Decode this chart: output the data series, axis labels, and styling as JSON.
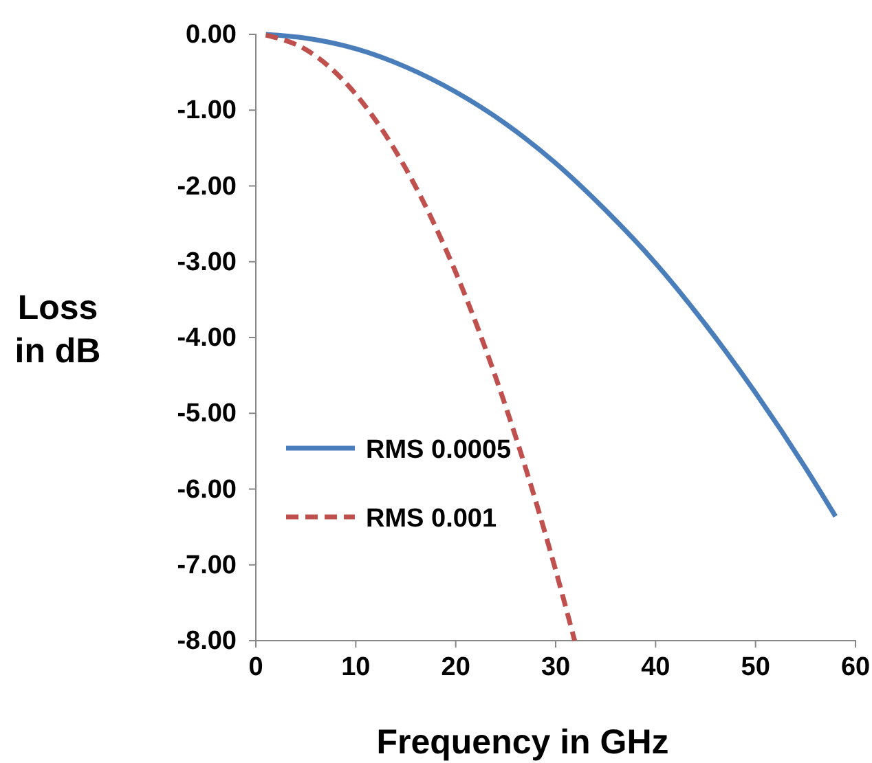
{
  "chart_data": {
    "type": "line",
    "xlabel": "Frequency in GHz",
    "ylabel": "Loss in dB",
    "xlim": [
      0,
      60
    ],
    "xticks": [
      0,
      10,
      20,
      30,
      40,
      50,
      60
    ],
    "ylim": [
      -8,
      0
    ],
    "yticks": [
      {
        "value": 0,
        "label": "0.00"
      },
      {
        "value": -1,
        "label": "-1.00"
      },
      {
        "value": -2,
        "label": "-2.00"
      },
      {
        "value": -3,
        "label": "-3.00"
      },
      {
        "value": -4,
        "label": "-4.00"
      },
      {
        "value": -5,
        "label": "-5.00"
      },
      {
        "value": -6,
        "label": "-6.00"
      },
      {
        "value": -7,
        "label": "-7.00"
      },
      {
        "value": -8,
        "label": "-8.00"
      }
    ],
    "grid": false,
    "legend": "bottom left",
    "marker": "none",
    "series": [
      {
        "name": "RMS 0.0005",
        "color": "#4a7ebb",
        "line_style": "solid",
        "x": [
          1,
          5,
          10,
          15,
          20,
          25,
          30,
          35,
          40,
          45,
          50,
          55,
          58
        ],
        "values": [
          0,
          -0.05,
          -0.19,
          -0.43,
          -0.76,
          -1.18,
          -1.7,
          -2.32,
          -3.02,
          -3.83,
          -4.73,
          -5.72,
          -6.36
        ]
      },
      {
        "name": "RMS 0.001",
        "color": "#c0504d",
        "line_style": "dashed",
        "x": [
          1,
          5,
          10,
          15,
          20,
          25,
          30,
          31.9
        ],
        "values": [
          -0.01,
          -0.2,
          -0.79,
          -1.77,
          -3.14,
          -4.91,
          -7.07,
          -8
        ]
      }
    ]
  }
}
